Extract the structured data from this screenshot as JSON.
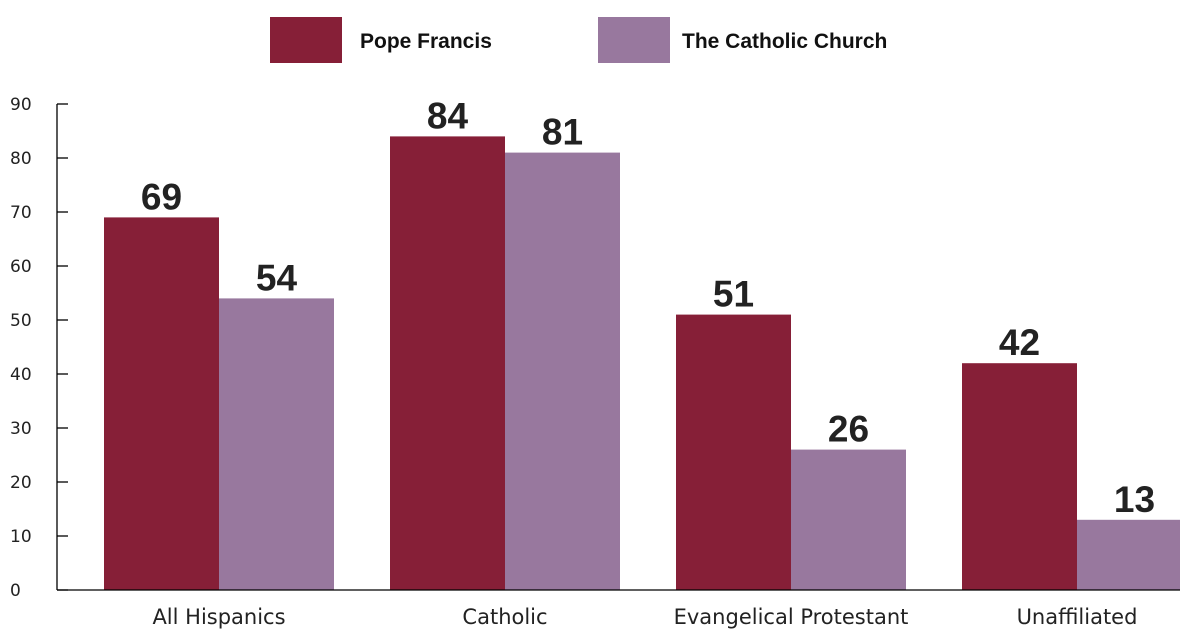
{
  "colors": {
    "pope": "#861f37",
    "church": "#98789e",
    "axis": "#000000"
  },
  "chart_data": {
    "type": "bar",
    "categories": [
      "All Hispanics",
      "Catholic",
      "Evangelical Protestant",
      "Unaffiliated"
    ],
    "series": [
      {
        "name": "Pope Francis",
        "values": [
          69,
          84,
          51,
          42
        ]
      },
      {
        "name": "The Catholic Church",
        "values": [
          54,
          81,
          26,
          13
        ]
      }
    ],
    "y_ticks": [
      "0",
      "10",
      "20",
      "30",
      "40",
      "50",
      "60",
      "70",
      "80",
      "90"
    ],
    "ylim": [
      0,
      90
    ],
    "grid": false,
    "legend_position": "top-center"
  }
}
